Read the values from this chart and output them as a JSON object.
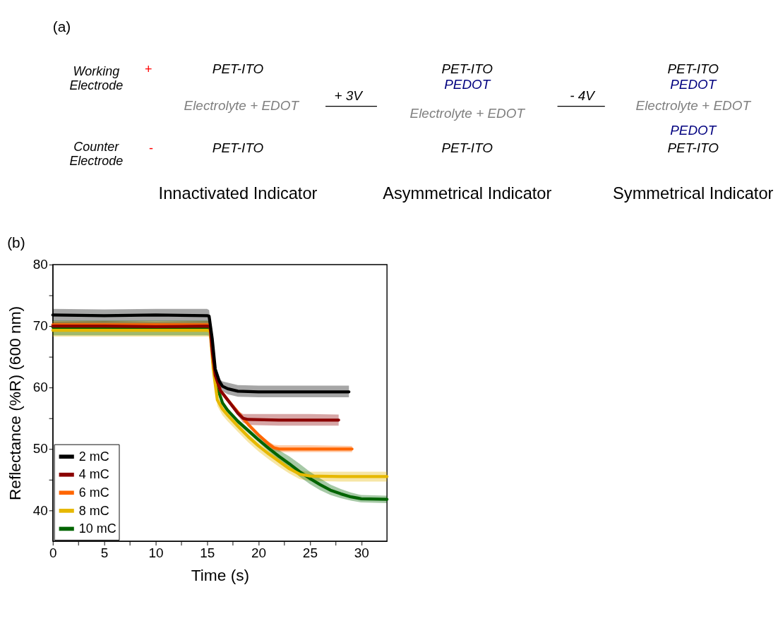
{
  "chart_data": [
    {
      "type": "other",
      "title": "(a)",
      "annotations": [
        "Working Electrode",
        "+",
        "Counter Electrode",
        "-",
        "PET-ITO",
        "Electrolyte + EDOT",
        "PET-ITO",
        "+ 3V",
        "PET-ITO",
        "PEDOT",
        "Electrolyte + EDOT",
        "PET-ITO",
        "- 4V",
        "PET-ITO",
        "PEDOT",
        "Electrolyte + EDOT",
        "PEDOT",
        "PET-ITO",
        "Innactivated Indicator",
        "Asymmetrical Indicator",
        "Symmetrical Indicator"
      ]
    },
    {
      "type": "line",
      "title": "(b)",
      "xlabel": "Time (s)",
      "ylabel": "Reflectance (%R) (600 nm)",
      "xlim": [
        0,
        32.5
      ],
      "ylim": [
        35,
        80
      ],
      "xticks": [
        0,
        {
          "value": 2.5,
          "label": null
        },
        5,
        {
          "value": 7.5,
          "label": null
        },
        10,
        {
          "value": 12.5,
          "label": null
        },
        15,
        {
          "value": 17.5,
          "label": null
        },
        20,
        {
          "value": 22.5,
          "label": null
        },
        25,
        {
          "value": 27.5,
          "label": null
        },
        30
      ],
      "yticks": [
        40,
        {
          "value": 45,
          "label": null
        },
        50,
        {
          "value": 55,
          "label": null
        },
        60,
        {
          "value": 65,
          "label": null
        },
        70,
        {
          "value": 75,
          "label": null
        },
        80
      ],
      "grid": false,
      "legend": "bottom left",
      "marker": "none",
      "line_style": "solid",
      "series": [
        {
          "name": "2 mC",
          "color": "#000000",
          "x": [
            0,
            5,
            10,
            15,
            15.2,
            15.5,
            15.8,
            16.2,
            16.5,
            17,
            18,
            20,
            25,
            28.8
          ],
          "values": [
            71.8,
            71.7,
            71.8,
            71.7,
            71.6,
            68,
            63,
            61,
            60.2,
            59.8,
            59.4,
            59.3,
            59.3,
            59.3
          ],
          "lower": [
            70.8,
            70.7,
            70.8,
            70.7,
            70.6,
            67.7,
            62.7,
            60.6,
            59.4,
            58.9,
            58.5,
            58.4,
            58.4,
            58.4
          ],
          "upper": [
            72.8,
            72.7,
            72.8,
            72.8,
            72.6,
            68.3,
            63.3,
            61.4,
            61,
            60.8,
            60.4,
            60.3,
            60.3,
            60.3
          ]
        },
        {
          "name": "4 mC",
          "color": "#8b0000",
          "x": [
            0,
            5,
            10,
            15,
            15.3,
            15.5,
            15.8,
            16.3,
            17,
            18,
            18.5,
            19,
            22,
            25,
            27.8
          ],
          "values": [
            70,
            70,
            69.9,
            70,
            69.9,
            66,
            62,
            59.5,
            58,
            55.8,
            55,
            54.8,
            54.7,
            54.7,
            54.7
          ],
          "lower": [
            69.3,
            69.3,
            69.2,
            69.3,
            69.2,
            65.7,
            61.7,
            59.2,
            57.7,
            55.4,
            54.3,
            53.9,
            53.8,
            53.8,
            53.8
          ],
          "upper": [
            70.7,
            70.7,
            70.6,
            70.7,
            70.6,
            66.3,
            62.3,
            59.8,
            58.3,
            56.2,
            55.7,
            55.7,
            55.7,
            55.7,
            55.6
          ]
        },
        {
          "name": "6 mC",
          "color": "#ff6600",
          "x": [
            0,
            5,
            10,
            15,
            15.3,
            15.5,
            15.8,
            16.3,
            17,
            18,
            19,
            20,
            21,
            21.5,
            22,
            25,
            29.1
          ],
          "values": [
            70.2,
            70.2,
            70.2,
            70.2,
            70.1,
            66,
            62,
            59.5,
            58,
            56,
            54,
            52.3,
            50.8,
            50.2,
            50,
            50,
            50
          ],
          "lower": [
            69.6,
            69.6,
            69.6,
            69.6,
            69.5,
            65.7,
            61.7,
            59.2,
            57.7,
            55.7,
            53.7,
            52,
            50.4,
            49.7,
            49.5,
            49.5,
            49.5
          ],
          "upper": [
            70.8,
            70.8,
            70.8,
            70.8,
            70.7,
            66.3,
            62.3,
            59.8,
            58.3,
            56.3,
            54.3,
            52.6,
            51.2,
            50.7,
            50.6,
            50.6,
            50.5
          ]
        },
        {
          "name": "8 mC",
          "color": "#e6b800",
          "x": [
            0,
            5,
            10,
            15,
            15.3,
            15.6,
            16,
            16.5,
            17,
            18,
            19,
            20,
            21,
            22,
            23,
            24,
            25,
            28,
            32.5
          ],
          "values": [
            69.3,
            69.3,
            69.3,
            69.3,
            69.2,
            63,
            58,
            56.5,
            55.5,
            53.7,
            52,
            50.5,
            49.2,
            48,
            46.8,
            45.9,
            45.6,
            45.5,
            45.5
          ],
          "lower": [
            68.3,
            68.3,
            68.3,
            68.3,
            68.2,
            62.2,
            57,
            55.5,
            54.5,
            52.8,
            51.1,
            49.6,
            48.3,
            47.1,
            46,
            45.1,
            44.8,
            44.7,
            44.7
          ],
          "upper": [
            70.1,
            70.1,
            70.1,
            70.1,
            70,
            63.5,
            58.5,
            57,
            56,
            54.2,
            52.5,
            51,
            49.7,
            48.5,
            47.3,
            46.5,
            46.3,
            46.3,
            46.3
          ]
        },
        {
          "name": "10 mC",
          "color": "#006400",
          "x": [
            0,
            5,
            10,
            15,
            15.3,
            15.6,
            16,
            16.5,
            17,
            18,
            19,
            20,
            21,
            22,
            23,
            24,
            25,
            26,
            27,
            28,
            29,
            30,
            32.5
          ],
          "values": [
            69.8,
            69.8,
            69.8,
            69.8,
            69.7,
            64,
            60,
            57.5,
            56.3,
            54.5,
            53,
            51.5,
            50.1,
            48.8,
            47.6,
            46.3,
            45.2,
            44.2,
            43.3,
            42.7,
            42.2,
            41.9,
            41.8
          ],
          "lower": [
            68.5,
            68.5,
            68.5,
            68.5,
            68.4,
            63.6,
            59.6,
            57.1,
            55.9,
            54.1,
            52.6,
            51.1,
            49.6,
            48.2,
            46.9,
            45.5,
            44.3,
            43.3,
            42.5,
            42,
            41.6,
            41.3,
            41.2
          ],
          "upper": [
            70.9,
            70.9,
            70.9,
            70.9,
            70.8,
            64.4,
            60.4,
            57.9,
            56.7,
            54.9,
            53.4,
            52,
            50.8,
            49.8,
            48.8,
            47.6,
            46.3,
            45.2,
            44.2,
            43.5,
            42.9,
            42.5,
            42.4
          ]
        }
      ]
    }
  ]
}
